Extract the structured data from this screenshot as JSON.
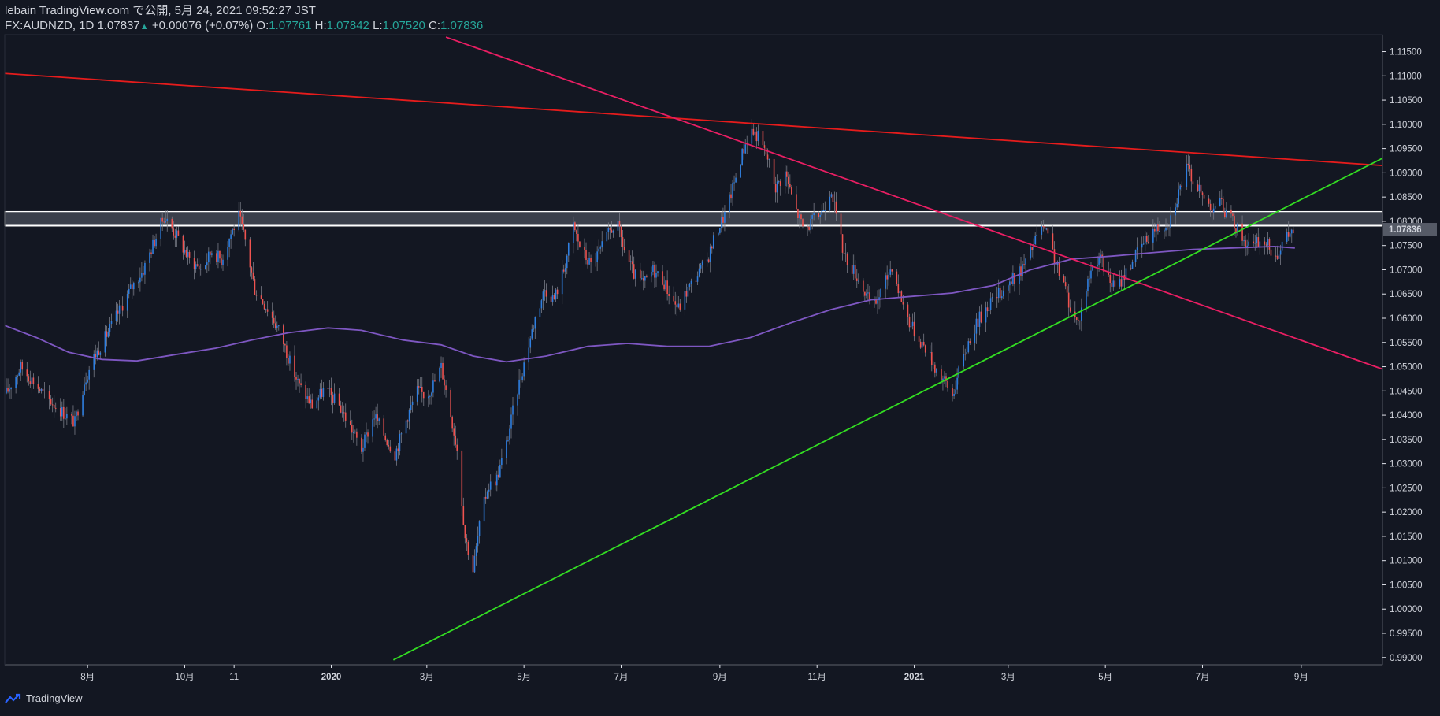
{
  "header": {
    "line1": "lebain TradingView.com で公開, 5月 24, 2021 09:52:27 JST",
    "symbol": "FX:AUDNZD, 1D",
    "last": "1.07837",
    "change": "+0.00076 (+0.07%)",
    "o_label": "O:",
    "o": "1.07761",
    "h_label": "H:",
    "h": "1.07842",
    "l_label": "L:",
    "l": "1.07520",
    "c_label": "C:",
    "c": "1.07836"
  },
  "footer": {
    "brand": "TradingView",
    "logo_icon": "tradingview-logo-icon"
  },
  "colors": {
    "background": "#131722",
    "up": "#2f7fe0",
    "down": "#ef5350",
    "ma": "#7e57c2",
    "resistance_line": "#e61c1c",
    "descending_line": "#e91e63",
    "support_line": "#33dd22",
    "zone_border": "#ffffff",
    "price_label_bg": "#555a66"
  },
  "chart_data": {
    "type": "candlestick",
    "symbol": "FX:AUDNZD",
    "interval": "1D",
    "last_price": "1.07836",
    "y_axis": {
      "range": [
        0.9885,
        1.1185
      ],
      "ticks": [
        "1.11500",
        "1.11000",
        "1.10500",
        "1.10000",
        "1.09500",
        "1.09000",
        "1.08500",
        "1.08000",
        "1.07500",
        "1.07000",
        "1.06500",
        "1.06000",
        "1.05500",
        "1.05000",
        "1.04500",
        "1.04000",
        "1.03500",
        "1.03000",
        "1.02500",
        "1.02000",
        "1.01500",
        "1.01000",
        "1.00500",
        "1.00000",
        "0.99500",
        "0.99000"
      ]
    },
    "x_axis": {
      "start": "2019-06-10",
      "end": "2021-10-22",
      "ticks": [
        {
          "date": "2019-08-01",
          "label": "8月",
          "bold": false
        },
        {
          "date": "2019-10-01",
          "label": "10月",
          "bold": false
        },
        {
          "date": "2019-11-01",
          "label": "11",
          "bold": false
        },
        {
          "date": "2020-01-01",
          "label": "2020",
          "bold": true
        },
        {
          "date": "2020-03-01",
          "label": "3月",
          "bold": false
        },
        {
          "date": "2020-05-01",
          "label": "5月",
          "bold": false
        },
        {
          "date": "2020-07-01",
          "label": "7月",
          "bold": false
        },
        {
          "date": "2020-09-01",
          "label": "9月",
          "bold": false
        },
        {
          "date": "2020-11-01",
          "label": "11月",
          "bold": false
        },
        {
          "date": "2021-01-01",
          "label": "2021",
          "bold": true
        },
        {
          "date": "2021-03-01",
          "label": "3月",
          "bold": false
        },
        {
          "date": "2021-05-01",
          "label": "5月",
          "bold": false
        },
        {
          "date": "2021-07-01",
          "label": "7月",
          "bold": false
        },
        {
          "date": "2021-09-01",
          "label": "9月",
          "bold": false
        }
      ]
    },
    "price_path": [
      [
        "2019-06-11",
        1.0445
      ],
      [
        "2019-06-20",
        1.05
      ],
      [
        "2019-06-28",
        1.047
      ],
      [
        "2019-07-05",
        1.044
      ],
      [
        "2019-07-12",
        1.042
      ],
      [
        "2019-07-20",
        1.0395
      ],
      [
        "2019-07-24",
        1.0385
      ],
      [
        "2019-07-30",
        1.047
      ],
      [
        "2019-08-05",
        1.052
      ],
      [
        "2019-08-12",
        1.056
      ],
      [
        "2019-08-20",
        1.061
      ],
      [
        "2019-08-28",
        1.066
      ],
      [
        "2019-09-05",
        1.07
      ],
      [
        "2019-09-12",
        1.076
      ],
      [
        "2019-09-18",
        1.081
      ],
      [
        "2019-09-26",
        1.077
      ],
      [
        "2019-10-04",
        1.072
      ],
      [
        "2019-10-12",
        1.07
      ],
      [
        "2019-10-18",
        1.074
      ],
      [
        "2019-10-24",
        1.072
      ],
      [
        "2019-10-30",
        1.0775
      ],
      [
        "2019-11-04",
        1.081
      ],
      [
        "2019-11-08",
        1.076
      ],
      [
        "2019-11-14",
        1.066
      ],
      [
        "2019-11-22",
        1.062
      ],
      [
        "2019-11-30",
        1.057
      ],
      [
        "2019-12-06",
        1.051
      ],
      [
        "2019-12-12",
        1.046
      ],
      [
        "2019-12-20",
        1.042
      ],
      [
        "2019-12-28",
        1.0455
      ],
      [
        "2020-01-06",
        1.042
      ],
      [
        "2020-01-14",
        1.037
      ],
      [
        "2020-01-20",
        1.033
      ],
      [
        "2020-01-28",
        1.04
      ],
      [
        "2020-02-04",
        1.0355
      ],
      [
        "2020-02-10",
        1.032
      ],
      [
        "2020-02-18",
        1.04
      ],
      [
        "2020-02-24",
        1.045
      ],
      [
        "2020-03-01",
        1.044
      ],
      [
        "2020-03-06",
        1.047
      ],
      [
        "2020-03-10",
        1.05
      ],
      [
        "2020-03-15",
        1.042
      ],
      [
        "2020-03-20",
        1.033
      ],
      [
        "2020-03-25",
        1.015
      ],
      [
        "2020-03-30",
        1.008
      ],
      [
        "2020-04-03",
        1.017
      ],
      [
        "2020-04-08",
        1.025
      ],
      [
        "2020-04-14",
        1.027
      ],
      [
        "2020-04-20",
        1.034
      ],
      [
        "2020-04-26",
        1.044
      ],
      [
        "2020-05-02",
        1.052
      ],
      [
        "2020-05-08",
        1.06
      ],
      [
        "2020-05-14",
        1.066
      ],
      [
        "2020-05-20",
        1.064
      ],
      [
        "2020-05-26",
        1.07
      ],
      [
        "2020-06-01",
        1.079
      ],
      [
        "2020-06-06",
        1.074
      ],
      [
        "2020-06-12",
        1.071
      ],
      [
        "2020-06-18",
        1.074
      ],
      [
        "2020-06-24",
        1.078
      ],
      [
        "2020-06-28",
        1.08
      ],
      [
        "2020-07-03",
        1.074
      ],
      [
        "2020-07-09",
        1.069
      ],
      [
        "2020-07-15",
        1.067
      ],
      [
        "2020-07-21",
        1.07
      ],
      [
        "2020-07-27",
        1.068
      ],
      [
        "2020-08-02",
        1.064
      ],
      [
        "2020-08-06",
        1.062
      ],
      [
        "2020-08-12",
        1.066
      ],
      [
        "2020-08-18",
        1.069
      ],
      [
        "2020-08-24",
        1.072
      ],
      [
        "2020-08-30",
        1.078
      ],
      [
        "2020-09-05",
        1.082
      ],
      [
        "2020-09-10",
        1.088
      ],
      [
        "2020-09-15",
        1.094
      ],
      [
        "2020-09-20",
        1.099
      ],
      [
        "2020-09-25",
        1.0975
      ],
      [
        "2020-10-01",
        1.093
      ],
      [
        "2020-10-06",
        1.087
      ],
      [
        "2020-10-12",
        1.09
      ],
      [
        "2020-10-18",
        1.083
      ],
      [
        "2020-10-24",
        1.078
      ],
      [
        "2020-10-29",
        1.08
      ],
      [
        "2020-11-04",
        1.082
      ],
      [
        "2020-11-10",
        1.087
      ],
      [
        "2020-11-14",
        1.079
      ],
      [
        "2020-11-18",
        1.073
      ],
      [
        "2020-11-24",
        1.07
      ],
      [
        "2020-11-30",
        1.066
      ],
      [
        "2020-12-06",
        1.062
      ],
      [
        "2020-12-12",
        1.066
      ],
      [
        "2020-12-18",
        1.071
      ],
      [
        "2020-12-22",
        1.066
      ],
      [
        "2020-12-28",
        1.06
      ],
      [
        "2021-01-03",
        1.056
      ],
      [
        "2021-01-08",
        1.054
      ],
      [
        "2021-01-14",
        1.05
      ],
      [
        "2021-01-20",
        1.047
      ],
      [
        "2021-01-25",
        1.044
      ],
      [
        "2021-01-30",
        1.05
      ],
      [
        "2021-02-05",
        1.056
      ],
      [
        "2021-02-11",
        1.06
      ],
      [
        "2021-02-17",
        1.063
      ],
      [
        "2021-02-23",
        1.065
      ],
      [
        "2021-03-01",
        1.067
      ],
      [
        "2021-03-07",
        1.069
      ],
      [
        "2021-03-13",
        1.072
      ],
      [
        "2021-03-18",
        1.076
      ],
      [
        "2021-03-22",
        1.079
      ],
      [
        "2021-03-27",
        1.076
      ],
      [
        "2021-04-01",
        1.07
      ],
      [
        "2021-04-06",
        1.066
      ],
      [
        "2021-04-10",
        1.061
      ],
      [
        "2021-04-14",
        1.059
      ],
      [
        "2021-04-18",
        1.065
      ],
      [
        "2021-04-22",
        1.07
      ],
      [
        "2021-04-27",
        1.073
      ],
      [
        "2021-05-03",
        1.068
      ],
      [
        "2021-05-08",
        1.066
      ],
      [
        "2021-05-13",
        1.069
      ],
      [
        "2021-05-18",
        1.072
      ],
      [
        "2021-05-24",
        1.075
      ],
      [
        "2021-05-30",
        1.078
      ],
      [
        "2021-06-05",
        1.079
      ],
      [
        "2021-06-10",
        1.08
      ],
      [
        "2021-06-16",
        1.086
      ],
      [
        "2021-06-21",
        1.091
      ],
      [
        "2021-06-26",
        1.088
      ],
      [
        "2021-07-01",
        1.085
      ],
      [
        "2021-07-06",
        1.083
      ],
      [
        "2021-07-12",
        1.084
      ],
      [
        "2021-07-17",
        1.081
      ],
      [
        "2021-07-22",
        1.079
      ],
      [
        "2021-07-27",
        1.076
      ],
      [
        "2021-08-01",
        1.0745
      ],
      [
        "2021-08-06",
        1.076
      ],
      [
        "2021-08-11",
        1.075
      ],
      [
        "2021-08-16",
        1.073
      ],
      [
        "2021-08-21",
        1.076
      ],
      [
        "2021-08-25",
        1.0775
      ],
      [
        "2021-08-28",
        1.07836
      ]
    ],
    "moving_average": [
      [
        "2019-06-10",
        1.0585
      ],
      [
        "2019-06-30",
        1.056
      ],
      [
        "2019-07-20",
        1.053
      ],
      [
        "2019-08-10",
        1.0515
      ],
      [
        "2019-09-01",
        1.0512
      ],
      [
        "2019-09-25",
        1.0525
      ],
      [
        "2019-10-20",
        1.0538
      ],
      [
        "2019-11-12",
        1.0555
      ],
      [
        "2019-12-05",
        1.057
      ],
      [
        "2019-12-30",
        1.058
      ],
      [
        "2020-01-20",
        1.0575
      ],
      [
        "2020-02-15",
        1.0555
      ],
      [
        "2020-03-10",
        1.0545
      ],
      [
        "2020-03-30",
        1.0522
      ],
      [
        "2020-04-20",
        1.051
      ],
      [
        "2020-05-15",
        1.0522
      ],
      [
        "2020-06-10",
        1.0542
      ],
      [
        "2020-07-05",
        1.0548
      ],
      [
        "2020-07-30",
        1.0542
      ],
      [
        "2020-08-25",
        1.0542
      ],
      [
        "2020-09-20",
        1.056
      ],
      [
        "2020-10-15",
        1.059
      ],
      [
        "2020-11-10",
        1.0618
      ],
      [
        "2020-12-05",
        1.0638
      ],
      [
        "2020-12-30",
        1.0645
      ],
      [
        "2021-01-25",
        1.0652
      ],
      [
        "2021-02-20",
        1.0668
      ],
      [
        "2021-03-15",
        1.07
      ],
      [
        "2021-04-10",
        1.0722
      ],
      [
        "2021-05-05",
        1.0728
      ],
      [
        "2021-05-30",
        1.0735
      ],
      [
        "2021-06-25",
        1.0742
      ],
      [
        "2021-07-20",
        1.0745
      ],
      [
        "2021-08-15",
        1.0748
      ],
      [
        "2021-08-28",
        1.0745
      ]
    ],
    "trendlines": [
      {
        "name": "resistance",
        "from": [
          "2019-06-10",
          1.1105
        ],
        "to": [
          "2021-10-22",
          1.0915
        ]
      },
      {
        "name": "descending",
        "from": [
          "2020-03-13",
          1.118
        ],
        "to": [
          "2021-10-22",
          1.0495
        ]
      },
      {
        "name": "support",
        "from": [
          "2020-02-09",
          0.9895
        ],
        "to": [
          "2021-10-22",
          1.093
        ]
      }
    ],
    "zone": {
      "top": 1.082,
      "bottom": 1.0791
    }
  }
}
